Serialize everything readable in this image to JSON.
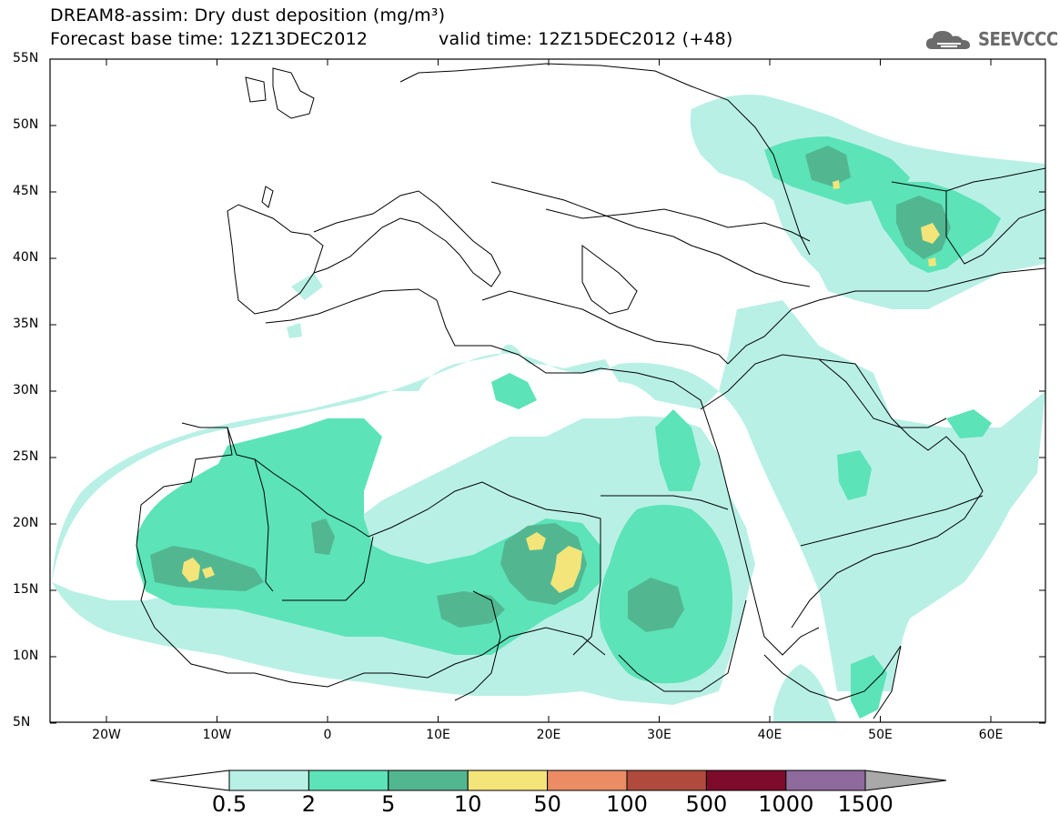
{
  "title": {
    "line1": "DREAM8-assim: Dry dust deposition (mg/m³)",
    "base_time": "Forecast base time: 12Z13DEC2012",
    "valid_time": "valid time: 12Z15DEC2012 (+48)"
  },
  "logo": {
    "text": "SEEVCCC",
    "icon": "cloud-logo-icon"
  },
  "axes": {
    "lat_labels": [
      "55N",
      "50N",
      "45N",
      "40N",
      "35N",
      "30N",
      "25N",
      "20N",
      "15N",
      "10N",
      "5N"
    ],
    "lon_labels": [
      "20W",
      "10W",
      "0",
      "10E",
      "20E",
      "30E",
      "40E",
      "50E",
      "60E"
    ]
  },
  "colorbar": {
    "labels": [
      "0.5",
      "2",
      "5",
      "10",
      "50",
      "100",
      "500",
      "1000",
      "1500"
    ],
    "colors": [
      "#b9f0e6",
      "#5ce3b8",
      "#52b791",
      "#f3e57a",
      "#eb8c64",
      "#b04a3c",
      "#7e0a2c",
      "#8f6a9d",
      "#a9a9a9"
    ]
  },
  "palette": {
    "level1": "#b9f0e6",
    "level2": "#5ce3b8",
    "level3": "#52b791",
    "level4": "#f3e57a"
  }
}
